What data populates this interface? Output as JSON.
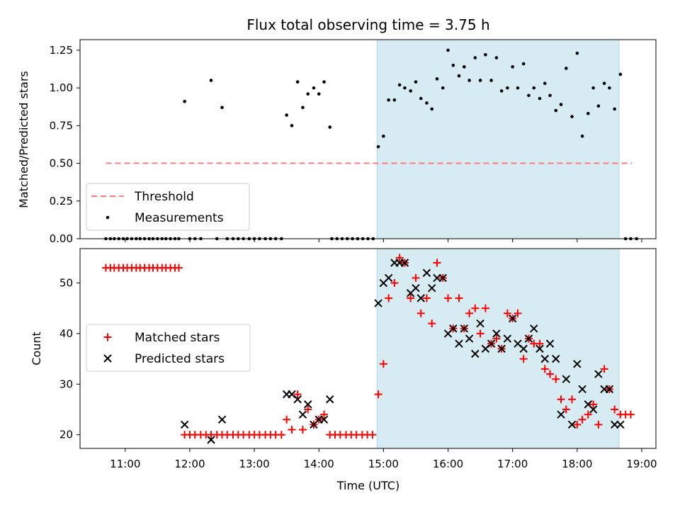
{
  "title": "Flux total observing time = 3.75 h",
  "colors": {
    "shade": "#add8e6",
    "threshold": "#ff7a7a",
    "measurement": "#000000",
    "matched": "#ff0000",
    "predicted": "#000000"
  },
  "x_ticks": [
    {
      "hour": 11,
      "label": "11:00"
    },
    {
      "hour": 12,
      "label": "12:00"
    },
    {
      "hour": 13,
      "label": "13:00"
    },
    {
      "hour": 14,
      "label": "14:00"
    },
    {
      "hour": 15,
      "label": "15:00"
    },
    {
      "hour": 16,
      "label": "16:00"
    },
    {
      "hour": 17,
      "label": "17:00"
    },
    {
      "hour": 18,
      "label": "18:00"
    },
    {
      "hour": 19,
      "label": "19:00"
    }
  ],
  "xlabel": "Time (UTC)",
  "chart_data": [
    {
      "type": "scatter",
      "ylabel": "Matched/Predicted stars",
      "xlim_hours": [
        10.3,
        19.22
      ],
      "ylim": [
        0,
        1.32
      ],
      "y_ticks": [
        "0.00",
        "0.25",
        "0.50",
        "0.75",
        "1.00",
        "1.25"
      ],
      "grid": false,
      "shaded_span_hours": [
        14.9,
        18.65
      ],
      "threshold": {
        "name": "Threshold",
        "y": 0.5,
        "x_range_hours": [
          10.7,
          18.85
        ],
        "style": "dashed"
      },
      "legend": {
        "position": "lower-left",
        "entries": [
          "Threshold",
          "Measurements"
        ]
      },
      "series": [
        {
          "name": "Measurements",
          "x_hours": [
            10.7,
            10.77,
            10.83,
            10.9,
            10.97,
            11.03,
            11.1,
            11.17,
            11.23,
            11.3,
            11.37,
            11.43,
            11.5,
            11.57,
            11.63,
            11.7,
            11.77,
            11.83,
            11.92,
            12.0,
            12.08,
            12.17,
            12.33,
            12.42,
            12.5,
            12.58,
            12.67,
            12.75,
            12.83,
            12.92,
            13.0,
            13.08,
            13.17,
            13.25,
            13.33,
            13.42,
            13.5,
            13.58,
            13.67,
            13.75,
            13.83,
            13.92,
            14.0,
            14.08,
            14.17,
            14.2,
            14.28,
            14.36,
            14.44,
            14.52,
            14.6,
            14.68,
            14.76,
            14.84,
            14.92,
            15.0,
            15.08,
            15.17,
            15.25,
            15.33,
            15.42,
            15.5,
            15.58,
            15.67,
            15.75,
            15.83,
            15.92,
            16.0,
            16.08,
            16.17,
            16.25,
            16.33,
            16.42,
            16.5,
            16.58,
            16.67,
            16.75,
            16.83,
            16.92,
            17.0,
            17.08,
            17.17,
            17.25,
            17.33,
            17.42,
            17.5,
            17.58,
            17.67,
            17.75,
            17.83,
            17.92,
            18.0,
            18.08,
            18.17,
            18.25,
            18.33,
            18.42,
            18.5,
            18.58,
            18.67,
            18.75,
            18.83,
            18.92
          ],
          "y": [
            0,
            0,
            0,
            0,
            0,
            0,
            0,
            0,
            0,
            0,
            0,
            0,
            0,
            0,
            0,
            0,
            0,
            0,
            0.91,
            0,
            0,
            0,
            1.05,
            0,
            0.87,
            0,
            0,
            0,
            0,
            0,
            0,
            0,
            0,
            0,
            0,
            0,
            0.82,
            0.75,
            1.04,
            0.87,
            0.96,
            1.0,
            0.96,
            1.04,
            0.74,
            0,
            0,
            0,
            0,
            0,
            0,
            0,
            0,
            0,
            0.61,
            0.68,
            0.92,
            0.92,
            1.02,
            1.0,
            0.98,
            1.04,
            0.93,
            0.9,
            0.86,
            1.06,
            1.0,
            1.25,
            1.15,
            1.08,
            1.14,
            1.05,
            1.2,
            1.05,
            1.22,
            1.05,
            1.2,
            0.98,
            1.0,
            1.14,
            1.0,
            1.16,
            0.95,
            1.0,
            0.93,
            1.03,
            0.95,
            0.85,
            0.89,
            1.13,
            0.81,
            1.23,
            0.68,
            0.83,
            1.0,
            0.88,
            1.03,
            1.0,
            0.86,
            1.09,
            0,
            0,
            0
          ]
        }
      ]
    },
    {
      "type": "scatter",
      "ylabel": "Count",
      "xlim_hours": [
        10.3,
        19.22
      ],
      "ylim": [
        17.3,
        56.8
      ],
      "y_ticks": [
        "20",
        "30",
        "40",
        "50"
      ],
      "grid": false,
      "shaded_span_hours": [
        14.9,
        18.65
      ],
      "legend": {
        "position": "center-left",
        "entries": [
          "Matched stars",
          "Predicted stars"
        ]
      },
      "series": [
        {
          "name": "Matched stars",
          "marker": "+",
          "x_hours": [
            10.7,
            10.77,
            10.83,
            10.9,
            10.97,
            11.03,
            11.1,
            11.17,
            11.23,
            11.3,
            11.37,
            11.43,
            11.5,
            11.57,
            11.63,
            11.7,
            11.77,
            11.83,
            11.92,
            12.0,
            12.08,
            12.17,
            12.25,
            12.33,
            12.42,
            12.5,
            12.58,
            12.67,
            12.75,
            12.83,
            12.92,
            13.0,
            13.08,
            13.17,
            13.25,
            13.33,
            13.42,
            13.5,
            13.58,
            13.67,
            13.75,
            13.83,
            13.92,
            14.0,
            14.08,
            14.17,
            14.25,
            14.33,
            14.42,
            14.5,
            14.58,
            14.67,
            14.75,
            14.83,
            14.92,
            15.0,
            15.08,
            15.17,
            15.25,
            15.33,
            15.42,
            15.5,
            15.58,
            15.67,
            15.75,
            15.83,
            15.92,
            16.0,
            16.08,
            16.17,
            16.25,
            16.33,
            16.42,
            16.5,
            16.58,
            16.67,
            16.75,
            16.83,
            16.92,
            17.0,
            17.08,
            17.17,
            17.25,
            17.33,
            17.42,
            17.5,
            17.58,
            17.67,
            17.75,
            17.83,
            17.92,
            18.0,
            18.08,
            18.17,
            18.25,
            18.33,
            18.42,
            18.5,
            18.58,
            18.67,
            18.75,
            18.83
          ],
          "y": [
            53,
            53,
            53,
            53,
            53,
            53,
            53,
            53,
            53,
            53,
            53,
            53,
            53,
            53,
            53,
            53,
            53,
            53,
            20,
            20,
            20,
            20,
            20,
            20,
            20,
            20,
            20,
            20,
            20,
            20,
            20,
            20,
            20,
            20,
            20,
            20,
            20,
            23,
            21,
            28,
            21,
            25,
            22,
            23,
            24,
            20,
            20,
            20,
            20,
            20,
            20,
            20,
            20,
            20,
            28,
            34,
            47,
            50,
            55,
            54,
            47,
            51,
            44,
            47,
            42,
            54,
            51,
            47,
            41,
            47,
            41,
            44,
            45,
            40,
            45,
            38,
            39,
            37,
            44,
            43,
            44,
            35,
            39,
            38,
            38,
            33,
            32,
            31,
            27,
            25,
            27,
            22,
            23,
            24,
            26,
            22,
            33,
            29,
            25,
            24,
            24,
            24
          ]
        },
        {
          "name": "Predicted stars",
          "marker": "x",
          "x_hours": [
            11.92,
            12.33,
            12.5,
            13.5,
            13.58,
            13.67,
            13.75,
            13.83,
            13.92,
            14.0,
            14.08,
            14.17,
            14.92,
            15.0,
            15.08,
            15.17,
            15.25,
            15.33,
            15.42,
            15.5,
            15.58,
            15.67,
            15.75,
            15.83,
            15.92,
            16.0,
            16.08,
            16.17,
            16.25,
            16.33,
            16.42,
            16.5,
            16.58,
            16.67,
            16.75,
            16.83,
            16.92,
            17.0,
            17.08,
            17.17,
            17.25,
            17.33,
            17.42,
            17.5,
            17.58,
            17.67,
            17.75,
            17.83,
            17.92,
            18.0,
            18.08,
            18.17,
            18.25,
            18.33,
            18.42,
            18.5,
            18.58,
            18.67
          ],
          "y": [
            22,
            19,
            23,
            28,
            28,
            27,
            24,
            26,
            22,
            23,
            23,
            27,
            46,
            50,
            51,
            54,
            54,
            54,
            48,
            49,
            47,
            52,
            49,
            51,
            51,
            40,
            41,
            38,
            41,
            39,
            36,
            42,
            37,
            38,
            40,
            37,
            39,
            43,
            38,
            37,
            39,
            41,
            37,
            35,
            38,
            35,
            24,
            31,
            22,
            34,
            29,
            26,
            25,
            32,
            29,
            29,
            22,
            22
          ]
        }
      ]
    }
  ]
}
